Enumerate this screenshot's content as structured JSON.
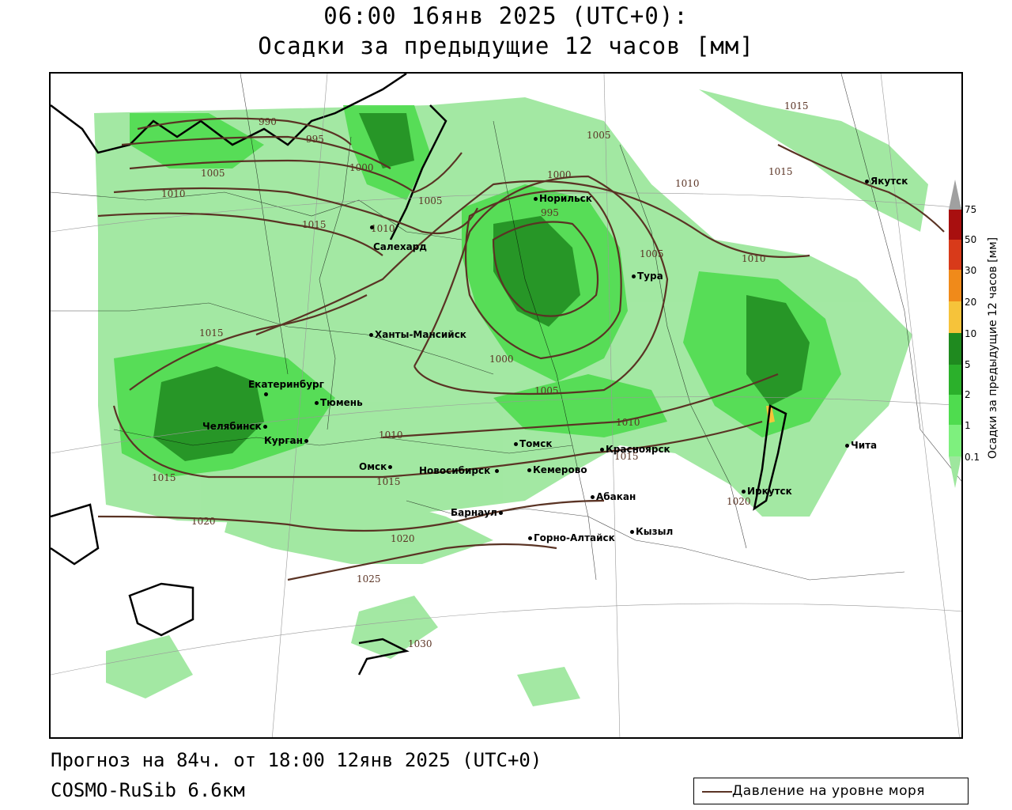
{
  "header": {
    "title_line1": "06:00 16янв 2025 (UTC+0):",
    "title_line2": "Осадки за предыдущие 12 часов [мм]"
  },
  "footer": {
    "forecast": "Прогноз на 84ч. от 18:00 12янв 2025 (UTC+0)",
    "model": "COSMO-RuSib 6.6км"
  },
  "legend": {
    "pressure_label": "Давление на уровне моря",
    "pressure_color": "#5a3324"
  },
  "colorbar": {
    "title": "Осадки за предыдущие 12 часов [мм]",
    "levels": [
      {
        "label": "0.1",
        "color": "#9ee79e"
      },
      {
        "label": "1",
        "color": "#7ef07e"
      },
      {
        "label": "2",
        "color": "#4fdc4f"
      },
      {
        "label": "5",
        "color": "#2bb02b"
      },
      {
        "label": "10",
        "color": "#1f8a1f"
      },
      {
        "label": "20",
        "color": "#f6c33a"
      },
      {
        "label": "30",
        "color": "#f08a1a"
      },
      {
        "label": "50",
        "color": "#d83a1a"
      },
      {
        "label": "75",
        "color": "#a80f0f"
      }
    ],
    "overflow_color": "#a0a0a0"
  },
  "cities": [
    {
      "name": "Норильск"
    },
    {
      "name": "Якутск"
    },
    {
      "name": "Салехард"
    },
    {
      "name": "Тура"
    },
    {
      "name": "Ханты-Мансийск"
    },
    {
      "name": "Екатеринбург"
    },
    {
      "name": "Тюмень"
    },
    {
      "name": "Челябинск"
    },
    {
      "name": "Курган"
    },
    {
      "name": "Омск"
    },
    {
      "name": "Томск"
    },
    {
      "name": "Красноярск"
    },
    {
      "name": "Новосибирск"
    },
    {
      "name": "Кемерово"
    },
    {
      "name": "Абакан"
    },
    {
      "name": "Барнаул"
    },
    {
      "name": "Горно-Алтайск"
    },
    {
      "name": "Кызыл"
    },
    {
      "name": "Иркутск"
    },
    {
      "name": "Чита"
    }
  ],
  "isobar_labels": [
    "990",
    "995",
    "1000",
    "1005",
    "1010",
    "1015",
    "1020",
    "1025",
    "1030"
  ]
}
